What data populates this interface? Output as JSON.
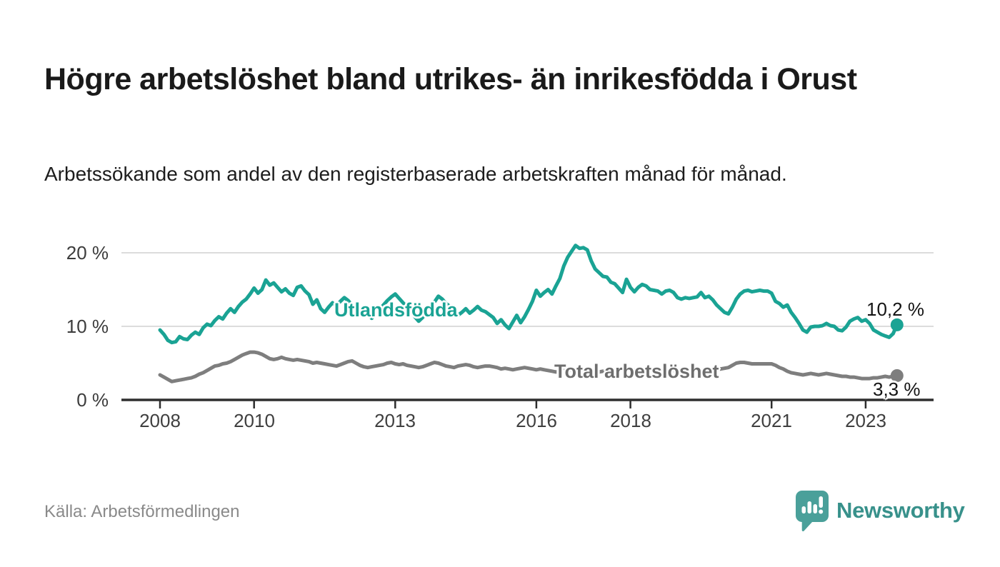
{
  "header": {
    "title": "Högre arbetslöshet bland utrikes- än inrikesfödda i Orust",
    "subtitle": "Arbetssökande som andel av den registerbaserade arbetskraften månad för månad."
  },
  "chart_data": {
    "type": "line",
    "unit": "%",
    "x_start": "2008-01",
    "x_end": "2023-09",
    "x_interval": "monthly",
    "ylim": [
      0,
      22
    ],
    "grid": "horizontal",
    "yticks": [
      {
        "value": 0,
        "label": "0 %"
      },
      {
        "value": 10,
        "label": "10 %"
      },
      {
        "value": 20,
        "label": "20 %"
      }
    ],
    "xticks": [
      {
        "year": 2008,
        "label": "2008"
      },
      {
        "year": 2010,
        "label": "2010"
      },
      {
        "year": 2013,
        "label": "2013"
      },
      {
        "year": 2016,
        "label": "2016"
      },
      {
        "year": 2018,
        "label": "2018"
      },
      {
        "year": 2021,
        "label": "2021"
      },
      {
        "year": 2023,
        "label": "2023"
      }
    ],
    "series": [
      {
        "name": "Utlandsfödda",
        "color": "#1aa394",
        "end_label": "10,2 %",
        "end_value": 10.2,
        "values": [
          9.5,
          8.9,
          8.1,
          7.8,
          7.9,
          8.6,
          8.3,
          8.2,
          8.8,
          9.2,
          8.9,
          9.8,
          10.3,
          10.1,
          10.8,
          11.3,
          11.0,
          11.8,
          12.4,
          11.9,
          12.7,
          13.3,
          13.7,
          14.4,
          15.2,
          14.5,
          15.0,
          16.3,
          15.6,
          15.9,
          15.3,
          14.7,
          15.1,
          14.5,
          14.2,
          15.3,
          15.5,
          14.8,
          14.3,
          13.0,
          13.6,
          12.4,
          11.9,
          12.6,
          13.2,
          12.8,
          13.4,
          13.9,
          13.5,
          12.9,
          12.4,
          11.9,
          12.5,
          11.6,
          11.1,
          11.7,
          12.3,
          12.9,
          13.5,
          14.0,
          14.4,
          13.8,
          13.2,
          12.6,
          11.9,
          11.3,
          10.7,
          11.2,
          11.9,
          12.6,
          13.3,
          14.1,
          13.7,
          13.1,
          12.7,
          12.1,
          11.5,
          11.9,
          12.4,
          11.8,
          12.2,
          12.7,
          12.2,
          12.0,
          11.6,
          11.2,
          10.4,
          10.9,
          10.2,
          9.7,
          10.6,
          11.5,
          10.5,
          11.3,
          12.3,
          13.4,
          14.9,
          14.1,
          14.6,
          15.0,
          14.4,
          15.5,
          16.5,
          18.2,
          19.4,
          20.2,
          21.0,
          20.6,
          20.7,
          20.4,
          18.9,
          17.8,
          17.3,
          16.8,
          16.7,
          16.0,
          15.8,
          15.2,
          14.6,
          16.4,
          15.3,
          14.7,
          15.3,
          15.7,
          15.5,
          15.0,
          14.9,
          14.8,
          14.4,
          14.8,
          14.9,
          14.6,
          13.9,
          13.7,
          13.9,
          13.8,
          13.9,
          14.0,
          14.6,
          13.9,
          14.1,
          13.6,
          12.9,
          12.4,
          11.9,
          11.7,
          12.6,
          13.7,
          14.4,
          14.8,
          14.9,
          14.7,
          14.8,
          14.9,
          14.8,
          14.8,
          14.5,
          13.4,
          13.1,
          12.6,
          12.9,
          11.9,
          11.2,
          10.4,
          9.5,
          9.2,
          9.9,
          10.0,
          10.0,
          10.1,
          10.4,
          10.1,
          10.0,
          9.5,
          9.4,
          9.9,
          10.7,
          11.0,
          11.2,
          10.7,
          10.9,
          10.4,
          9.5,
          9.2,
          8.9,
          8.7,
          8.5,
          9.0,
          10.2
        ]
      },
      {
        "name": "Total arbetslöshet",
        "color": "#7e7e7e",
        "end_label": "3,3 %",
        "end_value": 3.3,
        "values": [
          3.4,
          3.1,
          2.8,
          2.5,
          2.6,
          2.7,
          2.8,
          2.9,
          3.0,
          3.2,
          3.5,
          3.7,
          4.0,
          4.3,
          4.6,
          4.7,
          4.9,
          5.0,
          5.2,
          5.5,
          5.8,
          6.1,
          6.3,
          6.5,
          6.5,
          6.4,
          6.2,
          5.9,
          5.6,
          5.5,
          5.6,
          5.8,
          5.6,
          5.5,
          5.4,
          5.5,
          5.4,
          5.3,
          5.2,
          5.0,
          5.1,
          5.0,
          4.9,
          4.8,
          4.7,
          4.6,
          4.8,
          5.0,
          5.2,
          5.3,
          5.0,
          4.7,
          4.5,
          4.4,
          4.5,
          4.6,
          4.7,
          4.8,
          5.0,
          5.1,
          4.9,
          4.8,
          4.9,
          4.7,
          4.6,
          4.5,
          4.4,
          4.5,
          4.7,
          4.9,
          5.1,
          5.0,
          4.8,
          4.6,
          4.5,
          4.4,
          4.6,
          4.7,
          4.8,
          4.7,
          4.5,
          4.4,
          4.5,
          4.6,
          4.6,
          4.5,
          4.4,
          4.2,
          4.3,
          4.2,
          4.1,
          4.2,
          4.3,
          4.4,
          4.3,
          4.2,
          4.1,
          4.2,
          4.1,
          4.0,
          3.9,
          3.8,
          3.9,
          4.0,
          4.1,
          4.0,
          3.9,
          4.0,
          4.0,
          4.1,
          4.0,
          3.9,
          3.8,
          3.9,
          4.0,
          4.1,
          4.0,
          4.1,
          4.2,
          4.1,
          4.2,
          4.1,
          4.2,
          4.1,
          4.0,
          4.1,
          4.2,
          4.1,
          4.0,
          3.9,
          3.9,
          4.0,
          3.9,
          3.8,
          3.9,
          3.8,
          3.7,
          3.7,
          3.8,
          3.9,
          4.0,
          4.1,
          4.1,
          4.2,
          4.3,
          4.4,
          4.7,
          5.0,
          5.1,
          5.1,
          5.0,
          4.9,
          4.9,
          4.9,
          4.9,
          4.9,
          4.9,
          4.7,
          4.4,
          4.2,
          3.9,
          3.7,
          3.6,
          3.5,
          3.4,
          3.5,
          3.6,
          3.5,
          3.4,
          3.5,
          3.6,
          3.5,
          3.4,
          3.3,
          3.2,
          3.2,
          3.1,
          3.1,
          3.0,
          2.9,
          2.9,
          2.9,
          3.0,
          3.0,
          3.1,
          3.2,
          3.1,
          3.2,
          3.3
        ]
      }
    ],
    "axis_color": "#2e2e2e",
    "grid_color": "#dcdcdc"
  },
  "source": {
    "label": "Källa: Arbetsförmedlingen"
  },
  "branding": {
    "name": "Newsworthy",
    "icon": "newsworthy-logo-icon",
    "color": "#38918b"
  }
}
